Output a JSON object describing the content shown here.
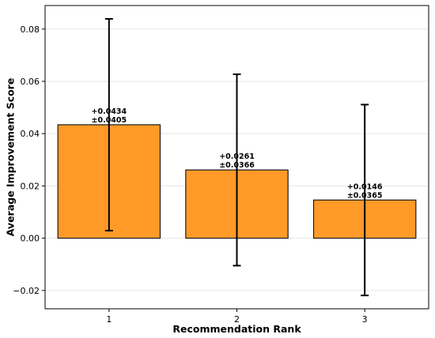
{
  "chart_data": {
    "type": "bar",
    "xlabel": "Recommendation Rank",
    "ylabel": "Average Improvement Score",
    "categories": [
      "1",
      "2",
      "3"
    ],
    "values": [
      0.0434,
      0.0261,
      0.0146
    ],
    "errors": [
      0.0405,
      0.0366,
      0.0365
    ],
    "data_labels": [
      [
        "+0.0434",
        "±0.0405"
      ],
      [
        "+0.0261",
        "±0.0366"
      ],
      [
        "+0.0146",
        "±0.0365"
      ]
    ],
    "ylim": [
      -0.027,
      0.089
    ],
    "yticks": [
      -0.02,
      0.0,
      0.02,
      0.04,
      0.06,
      0.08
    ],
    "ytick_labels": [
      "−0.02",
      "0.00",
      "0.02",
      "0.04",
      "0.06",
      "0.08"
    ],
    "grid": "horizontal",
    "legend": "none",
    "colors": {
      "bar": "#FF9A28",
      "bar_edge": "#1a1a1a",
      "errorbar": "#000000",
      "grid": "#e6e6e6"
    }
  }
}
